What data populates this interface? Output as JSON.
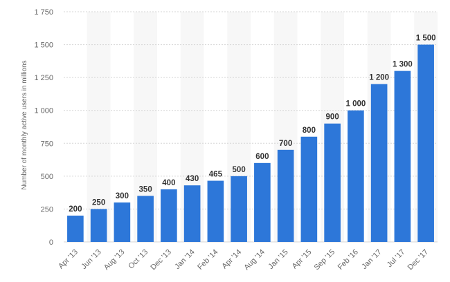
{
  "chart_data": {
    "type": "bar",
    "categories": [
      "Apr '13",
      "Jun '13",
      "Aug '13",
      "Oct '13",
      "Dec '13",
      "Jan '14",
      "Feb '14",
      "Apr '14",
      "Aug '14",
      "Jan '15",
      "Apr '15",
      "Sep '15",
      "Feb '16",
      "Jan '17",
      "Jul '17",
      "Dec '17"
    ],
    "values": [
      200,
      250,
      300,
      350,
      400,
      430,
      465,
      500,
      600,
      700,
      800,
      900,
      1000,
      1200,
      1300,
      1500
    ],
    "data_labels": [
      "200",
      "250",
      "300",
      "350",
      "400",
      "430",
      "465",
      "500",
      "600",
      "700",
      "800",
      "900",
      "1 000",
      "1 200",
      "1 300",
      "1 500"
    ],
    "title": "",
    "xlabel": "",
    "ylabel": "Number of monthly active users in millions",
    "ylim": [
      0,
      1750
    ],
    "yticks": [
      0,
      250,
      500,
      750,
      1000,
      1250,
      1500,
      1750
    ],
    "ytick_labels": [
      "0",
      "250",
      "500",
      "750",
      "1 000",
      "1 250",
      "1 500",
      "1 750"
    ],
    "grid": true,
    "bar_color": "#2d77d9",
    "alternate_band_color": "#f7f7f7",
    "grid_color": "#d6d6d6"
  }
}
